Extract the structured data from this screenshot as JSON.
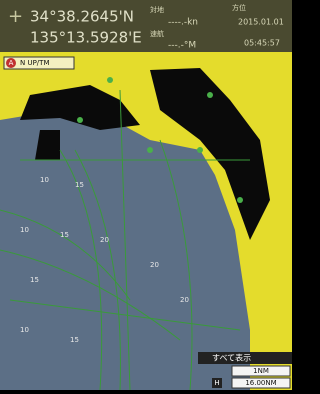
{
  "header": {
    "latitude": "34°38.2645'N",
    "longitude": "135°13.5928'E",
    "label_ground": "対地",
    "label_heading": "方位",
    "label_speed": "速航",
    "speed": "----.-kn",
    "course": "---.-°M",
    "date": "2015.01.01",
    "time": "05:45:57"
  },
  "mode": {
    "badge": "A",
    "text": "N UP/TM"
  },
  "depths": [
    "10",
    "15",
    "10",
    "15",
    "20",
    "15",
    "20",
    "10",
    "15",
    "20"
  ],
  "footer": {
    "show_all": "すべて表示",
    "scale": "1NM",
    "range_badge": "H",
    "range": "16.00NM"
  }
}
